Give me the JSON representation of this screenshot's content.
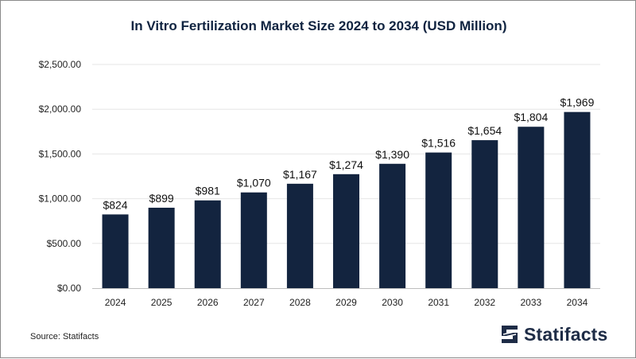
{
  "chart_data": {
    "type": "bar",
    "title": "In Vitro Fertilization Market Size 2024 to 2034 (USD Million)",
    "categories": [
      "2024",
      "2025",
      "2026",
      "2027",
      "2028",
      "2029",
      "2030",
      "2031",
      "2032",
      "2033",
      "2034"
    ],
    "values": [
      824,
      899,
      981,
      1070,
      1167,
      1274,
      1390,
      1516,
      1654,
      1804,
      1969
    ],
    "value_labels": [
      "$824",
      "$899",
      "$981",
      "$1,070",
      "$1,167",
      "$1,274",
      "$1,390",
      "$1,516",
      "$1,654",
      "$1,804",
      "$1,969"
    ],
    "yticks": [
      0,
      500,
      1000,
      1500,
      2000,
      2500
    ],
    "ytick_labels": [
      "$0.00",
      "$500.00",
      "$1,000.00",
      "$1,500.00",
      "$2,000.00",
      "$2,500.00"
    ],
    "ylim": [
      0,
      2500
    ],
    "xlabel": "",
    "ylabel": "",
    "grid": true,
    "bar_color": "#13243f"
  },
  "source": "Source: Statifacts",
  "brand": {
    "name": "Statifacts",
    "logo_icon": "statifacts-s-icon"
  }
}
